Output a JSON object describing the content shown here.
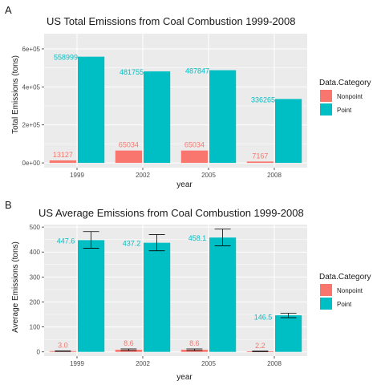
{
  "figure": {
    "colors": {
      "nonpoint": "#F8766D",
      "point": "#00BFC4",
      "panel_bg": "#EBEBEB",
      "grid": "#FFFFFF"
    }
  },
  "chart_data": [
    {
      "panel": "A",
      "type": "bar",
      "title": "US Total Emissions from Coal Combustion 1999-2008",
      "xlabel": "year",
      "ylabel": "Total Emissions (tons)",
      "categories": [
        "1999",
        "2002",
        "2005",
        "2008"
      ],
      "ylim": [
        -25000,
        680000
      ],
      "yticks": [
        0,
        200000,
        400000,
        600000
      ],
      "ytick_labels": [
        "0e+00",
        "2e+05",
        "4e+05",
        "6e+05"
      ],
      "legend": {
        "title": "Data.Category",
        "position": "right"
      },
      "series": [
        {
          "name": "Nonpoint",
          "color": "#F8766D",
          "values": [
            13127,
            65034,
            65034,
            7167
          ],
          "labels": [
            "13127",
            "65034",
            "65034",
            "7167"
          ]
        },
        {
          "name": "Point",
          "color": "#00BFC4",
          "values": [
            558999,
            481755,
            487847,
            336265
          ],
          "labels": [
            "558999",
            "481755",
            "487847",
            "336265"
          ]
        }
      ]
    },
    {
      "panel": "B",
      "type": "bar",
      "title": "US Average Emissions from Coal Combustion 1999-2008",
      "xlabel": "year",
      "ylabel": "Average Emissions (tons)",
      "categories": [
        "1999",
        "2002",
        "2005",
        "2008"
      ],
      "ylim": [
        -17,
        510
      ],
      "yticks": [
        0,
        100,
        200,
        300,
        400,
        500
      ],
      "ytick_labels": [
        "0",
        "100",
        "200",
        "300",
        "400",
        "500"
      ],
      "legend": {
        "title": "Data.Category",
        "position": "right"
      },
      "series": [
        {
          "name": "Nonpoint",
          "color": "#F8766D",
          "values": [
            3.0,
            8.6,
            8.6,
            2.2
          ],
          "labels": [
            "3.0",
            "8.6",
            "8.6",
            "2.2"
          ],
          "error": [
            [
              2,
              4
            ],
            [
              5,
              12
            ],
            [
              5,
              12
            ],
            [
              1,
              3
            ]
          ]
        },
        {
          "name": "Point",
          "color": "#00BFC4",
          "values": [
            447.6,
            437.2,
            458.1,
            146.5
          ],
          "labels": [
            "447.6",
            "437.2",
            "458.1",
            "146.5"
          ],
          "error": [
            [
              415,
              482
            ],
            [
              405,
              470
            ],
            [
              425,
              492
            ],
            [
              137,
              155
            ]
          ]
        }
      ]
    }
  ]
}
